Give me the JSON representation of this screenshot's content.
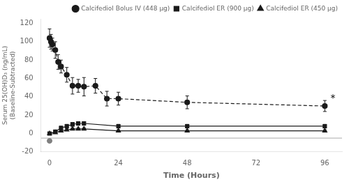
{
  "chart_data": {
    "type": "line",
    "xlabel": "Time (Hours)",
    "ylabel": "Serum 25(OH)D₃ (ng/mL)\n(Baseline-Subtracted)",
    "xlim": [
      -3,
      102
    ],
    "ylim": [
      -20,
      125
    ],
    "xticks": [
      0,
      24,
      48,
      72,
      96
    ],
    "yticks": [
      -20,
      0,
      20,
      40,
      60,
      80,
      100,
      120
    ],
    "grid": false,
    "legend": "upper right",
    "series": [
      {
        "name": "Calcifediol Bolus IV (448 μg)",
        "x": [
          0,
          0.5,
          1,
          2,
          3,
          4,
          6,
          8,
          10,
          12,
          16,
          20,
          24,
          48,
          96
        ],
        "values": [
          104,
          100,
          97,
          91,
          78,
          73,
          64,
          52,
          52,
          51,
          52,
          38,
          38,
          34,
          30
        ],
        "errors": [
          10,
          8,
          7,
          9,
          8,
          7,
          8,
          9,
          7,
          10,
          8,
          8,
          7,
          7,
          6
        ],
        "color": "#1a1a1a",
        "marker": "circle",
        "line_style": "dashed"
      },
      {
        "name": "Calcifediol ER (900 μg)",
        "x": [
          0,
          2,
          4,
          6,
          8,
          10,
          12,
          24,
          48,
          96
        ],
        "values": [
          0,
          2,
          6,
          8,
          10,
          11,
          11,
          8,
          8,
          8
        ],
        "errors": [
          1,
          1,
          2,
          2,
          2,
          2,
          2,
          2,
          2,
          2
        ],
        "color": "#1a1a1a",
        "marker": "square",
        "line_style": "solid"
      },
      {
        "name": "Calcifediol ER (450 μg)",
        "x": [
          0,
          2,
          4,
          6,
          8,
          10,
          12,
          24,
          48,
          96
        ],
        "values": [
          0,
          1,
          3,
          4,
          5,
          5,
          5,
          3,
          3,
          3
        ],
        "errors": [
          0.5,
          0.5,
          1,
          1,
          1,
          1,
          1,
          1,
          1,
          1
        ],
        "color": "#1a1a1a",
        "marker": "triangle",
        "line_style": "solid"
      }
    ],
    "reference_lines": [
      {
        "y": -5,
        "color": "#aaaaaa"
      }
    ],
    "extra_points": [
      {
        "x": 0,
        "y": -8,
        "color": "gray",
        "marker": "circle"
      }
    ],
    "annotations": [
      {
        "text": "*",
        "x": 97,
        "y": 38
      }
    ]
  }
}
